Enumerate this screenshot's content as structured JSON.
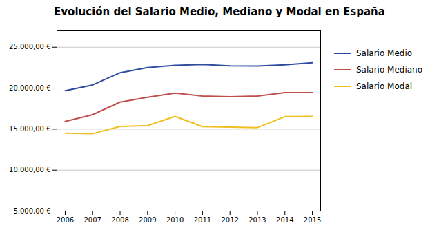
{
  "chart_data": {
    "type": "line",
    "title": "Evolución del Salario Medio, Mediano y Modal en España",
    "x": [
      2006,
      2007,
      2008,
      2009,
      2010,
      2011,
      2012,
      2013,
      2014,
      2015
    ],
    "series": [
      {
        "name": "Salario Medio",
        "color": "#2e4d9e",
        "values": [
          19680,
          20390,
          21883,
          22511,
          22790,
          22899,
          22726,
          22697,
          22858,
          23106
        ]
      },
      {
        "name": "Salario Mediano",
        "color": "#c0504d",
        "values": [
          15931,
          16760,
          18295,
          18894,
          19399,
          19029,
          18956,
          19027,
          19449,
          19449
        ]
      },
      {
        "name": "Salario Modal",
        "color": "#f0c020",
        "values": [
          14503,
          14450,
          15320,
          15433,
          16547,
          15305,
          15236,
          15184,
          16520,
          16545
        ]
      }
    ],
    "xlim": [
      2005.7,
      2015.3
    ],
    "xticks": [
      2006,
      2007,
      2008,
      2009,
      2010,
      2011,
      2012,
      2013,
      2014,
      2015
    ],
    "ylim": [
      5000,
      27000
    ],
    "yticks": [
      {
        "value": 5000,
        "label": "5.000,00 €"
      },
      {
        "value": 10000,
        "label": "10.000,00 €"
      },
      {
        "value": 15000,
        "label": "15.000,00 €"
      },
      {
        "value": 20000,
        "label": "20.000,00 €"
      },
      {
        "value": 25000,
        "label": "25.000,00 €"
      }
    ],
    "grid": "y",
    "legend": "right"
  }
}
